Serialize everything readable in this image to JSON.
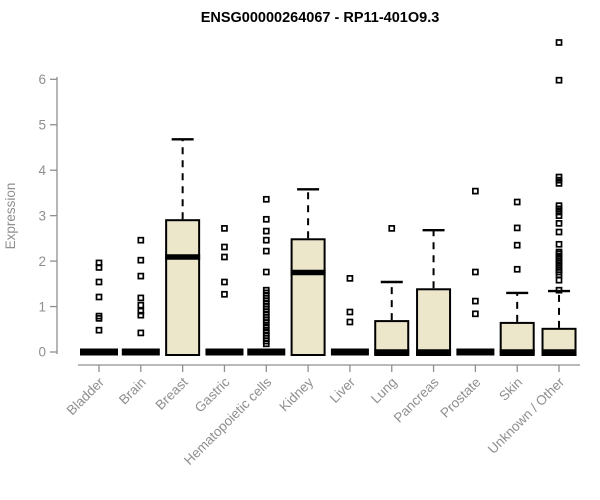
{
  "colors": {
    "box_fill": "#ece6cb",
    "box_stroke": "#000000",
    "median": "#000000",
    "whisker": "#000000",
    "outlier": "#000000",
    "axis": "#8f8f8f",
    "title": "#000000",
    "background": "#ffffff"
  },
  "chart_data": {
    "type": "boxplot",
    "title": "ENSG00000264067 - RP11-401O9.3",
    "xlabel": "",
    "ylabel": "Expression",
    "ylim": [
      0,
      6.9
    ],
    "yticks": [
      0,
      1,
      2,
      3,
      4,
      5,
      6
    ],
    "grid": false,
    "legend": false,
    "categories": [
      "Bladder",
      "Brain",
      "Breast",
      "Gastric",
      "Hematopoietic cells",
      "Kidney",
      "Liver",
      "Lung",
      "Pancreas",
      "Prostate",
      "Skin",
      "Unknown / Other"
    ],
    "series": [
      {
        "name": "Bladder",
        "flat": true,
        "q1": 0,
        "median": 0,
        "q3": 0,
        "whisker_low": 0,
        "whisker_high": 0,
        "outliers": [
          1.96,
          1.86,
          1.54,
          1.21,
          0.79,
          0.74,
          0.48
        ]
      },
      {
        "name": "Brain",
        "flat": true,
        "q1": 0,
        "median": 0,
        "q3": 0,
        "whisker_low": 0,
        "whisker_high": 0,
        "outliers": [
          2.46,
          2.02,
          1.67,
          1.19,
          1.03,
          0.9,
          0.81,
          0.42
        ]
      },
      {
        "name": "Breast",
        "flat": false,
        "q1": 0,
        "median": 2.09,
        "q3": 2.9,
        "whisker_low": 0,
        "whisker_high": 4.68,
        "outliers": []
      },
      {
        "name": "Gastric",
        "flat": true,
        "q1": 0,
        "median": 0,
        "q3": 0,
        "whisker_low": 0,
        "whisker_high": 0,
        "outliers": [
          2.72,
          2.31,
          2.09,
          1.54,
          1.27
        ]
      },
      {
        "name": "Hematopoietic cells",
        "flat": true,
        "q1": 0,
        "median": 0,
        "q3": 0,
        "whisker_low": 0,
        "whisker_high": 0,
        "outliers": [
          3.36,
          2.92,
          2.66,
          2.46,
          2.22,
          1.76,
          1.36,
          1.3,
          1.24,
          1.18,
          1.12,
          1.06,
          1.0,
          0.94,
          0.88,
          0.82,
          0.76,
          0.7,
          0.64,
          0.55,
          0.48,
          0.42,
          0.36,
          0.3,
          0.24,
          0.18
        ]
      },
      {
        "name": "Kidney",
        "flat": false,
        "q1": 0,
        "median": 1.75,
        "q3": 2.48,
        "whisker_low": 0,
        "whisker_high": 3.58,
        "outliers": []
      },
      {
        "name": "Liver",
        "flat": true,
        "q1": 0,
        "median": 0,
        "q3": 0,
        "whisker_low": 0,
        "whisker_high": 0,
        "outliers": [
          1.62,
          0.88,
          0.66
        ]
      },
      {
        "name": "Lung",
        "flat": false,
        "q1": 0,
        "median": 0,
        "q3": 0.68,
        "whisker_low": 0,
        "whisker_high": 1.54,
        "outliers": [
          2.72
        ]
      },
      {
        "name": "Pancreas",
        "flat": false,
        "q1": 0,
        "median": 0,
        "q3": 1.38,
        "whisker_low": 0,
        "whisker_high": 2.68,
        "outliers": []
      },
      {
        "name": "Prostate",
        "flat": true,
        "q1": 0,
        "median": 0,
        "q3": 0,
        "whisker_low": 0,
        "whisker_high": 0,
        "outliers": [
          3.54,
          1.76,
          1.12,
          0.84
        ]
      },
      {
        "name": "Skin",
        "flat": false,
        "q1": 0,
        "median": 0,
        "q3": 0.64,
        "whisker_low": 0,
        "whisker_high": 1.3,
        "outliers": [
          3.3,
          2.73,
          2.35,
          1.82
        ]
      },
      {
        "name": "Unknown / Other",
        "flat": false,
        "q1": 0,
        "median": 0,
        "q3": 0.51,
        "whisker_low": 0,
        "whisker_high": 1.34,
        "outliers": [
          6.81,
          5.98,
          3.85,
          3.78,
          3.71,
          3.22,
          3.15,
          3.08,
          3.0,
          2.83,
          2.64,
          2.37,
          2.2,
          2.16,
          2.11,
          2.06,
          2.01,
          1.96,
          1.91,
          1.86,
          1.81,
          1.76,
          1.7,
          1.58,
          1.36
        ]
      }
    ]
  }
}
